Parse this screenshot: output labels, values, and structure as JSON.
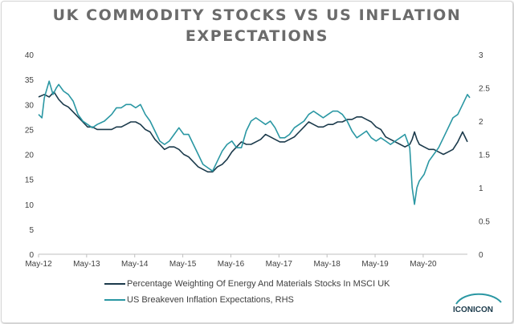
{
  "chart_data": {
    "type": "line",
    "title_lines": [
      "UK COMMODITY STOCKS VS US INFLATION",
      "EXPECTATIONS"
    ],
    "x_ticks": [
      "May-12",
      "May-13",
      "May-14",
      "May-15",
      "May-16",
      "May-17",
      "May-18",
      "May-19",
      "May-20"
    ],
    "y_left": {
      "min": 0,
      "max": 40,
      "ticks": [
        "0",
        "5",
        "10",
        "15",
        "20",
        "25",
        "30",
        "35",
        "40"
      ]
    },
    "y_right": {
      "min": 0,
      "max": 3,
      "ticks": [
        "0",
        "0.5",
        "1",
        "1.5",
        "2",
        "2.5",
        "3"
      ]
    },
    "grid": false,
    "legend_position": "bottom",
    "series": [
      {
        "name": "Percentage Weighting Of Energy And Materials Stocks In MSCI UK",
        "axis": "left",
        "color": "#1b3a4b",
        "x": [
          2012.38,
          2012.5,
          2012.6,
          2012.7,
          2012.8,
          2012.9,
          2013.0,
          2013.1,
          2013.2,
          2013.3,
          2013.4,
          2013.5,
          2013.6,
          2013.75,
          2013.9,
          2014.0,
          2014.1,
          2014.2,
          2014.3,
          2014.4,
          2014.5,
          2014.6,
          2014.7,
          2014.8,
          2014.9,
          2015.0,
          2015.1,
          2015.2,
          2015.3,
          2015.4,
          2015.5,
          2015.6,
          2015.7,
          2015.8,
          2015.9,
          2016.0,
          2016.1,
          2016.2,
          2016.3,
          2016.4,
          2016.5,
          2016.6,
          2016.7,
          2016.8,
          2016.9,
          2017.0,
          2017.1,
          2017.2,
          2017.3,
          2017.4,
          2017.5,
          2017.6,
          2017.7,
          2017.8,
          2017.9,
          2018.0,
          2018.1,
          2018.2,
          2018.3,
          2018.4,
          2018.5,
          2018.6,
          2018.7,
          2018.8,
          2018.9,
          2019.0,
          2019.1,
          2019.2,
          2019.3,
          2019.4,
          2019.5,
          2019.6,
          2019.7,
          2019.8,
          2019.9,
          2020.0,
          2020.1,
          2020.15,
          2020.2,
          2020.25,
          2020.3,
          2020.4,
          2020.5,
          2020.6,
          2020.7,
          2020.8,
          2020.9,
          2021.0,
          2021.1,
          2021.2,
          2021.3
        ],
        "values": [
          31.5,
          32,
          31.5,
          32.5,
          31,
          30,
          29.5,
          28.5,
          27.5,
          26.5,
          25.5,
          25.5,
          25,
          25,
          25,
          25.5,
          25.5,
          26,
          26.5,
          26.5,
          26,
          25,
          24.5,
          23,
          22,
          21,
          21.5,
          21.5,
          21,
          20,
          19.5,
          18.5,
          17.5,
          17,
          16.5,
          16.5,
          17.5,
          18,
          19,
          20.5,
          21.5,
          22.5,
          22,
          22,
          22.5,
          23,
          24,
          23.5,
          23,
          22.5,
          22.5,
          23,
          23.5,
          24.5,
          25.5,
          26.5,
          26,
          25.5,
          25.5,
          26,
          26,
          26.5,
          26.5,
          27,
          27,
          27.5,
          27.5,
          27,
          26.5,
          25.5,
          25,
          23.5,
          23,
          22.5,
          22,
          21.5,
          22,
          23,
          24.5,
          23,
          22,
          21.5,
          21,
          21,
          20.5,
          20,
          20.5,
          21,
          22.5,
          24.5,
          22.5
        ]
      },
      {
        "name": "US Breakeven Inflation Expectations, RHS",
        "axis": "right",
        "color": "#2a97a3",
        "x": [
          2012.38,
          2012.45,
          2012.5,
          2012.6,
          2012.68,
          2012.75,
          2012.8,
          2012.9,
          2013.0,
          2013.1,
          2013.2,
          2013.3,
          2013.4,
          2013.5,
          2013.6,
          2013.75,
          2013.9,
          2014.0,
          2014.1,
          2014.2,
          2014.3,
          2014.4,
          2014.5,
          2014.6,
          2014.7,
          2014.8,
          2014.9,
          2015.0,
          2015.1,
          2015.2,
          2015.3,
          2015.4,
          2015.5,
          2015.6,
          2015.7,
          2015.8,
          2015.9,
          2016.0,
          2016.1,
          2016.2,
          2016.3,
          2016.4,
          2016.5,
          2016.6,
          2016.7,
          2016.8,
          2016.9,
          2017.0,
          2017.1,
          2017.2,
          2017.3,
          2017.4,
          2017.5,
          2017.6,
          2017.7,
          2017.8,
          2017.9,
          2018.0,
          2018.1,
          2018.2,
          2018.3,
          2018.4,
          2018.5,
          2018.6,
          2018.7,
          2018.8,
          2018.9,
          2019.0,
          2019.1,
          2019.2,
          2019.3,
          2019.4,
          2019.5,
          2019.6,
          2019.7,
          2019.8,
          2019.9,
          2020.0,
          2020.1,
          2020.15,
          2020.2,
          2020.25,
          2020.3,
          2020.4,
          2020.5,
          2020.6,
          2020.7,
          2020.8,
          2020.9,
          2021.0,
          2021.1,
          2021.2,
          2021.3,
          2021.35
        ],
        "values": [
          2.1,
          2.05,
          2.35,
          2.6,
          2.4,
          2.5,
          2.55,
          2.45,
          2.4,
          2.3,
          2.1,
          2.0,
          1.95,
          1.9,
          1.95,
          2.0,
          2.1,
          2.2,
          2.2,
          2.25,
          2.25,
          2.2,
          2.25,
          2.1,
          2.0,
          1.85,
          1.7,
          1.65,
          1.7,
          1.8,
          1.9,
          1.8,
          1.8,
          1.65,
          1.5,
          1.35,
          1.3,
          1.25,
          1.4,
          1.55,
          1.65,
          1.7,
          1.6,
          1.6,
          1.85,
          2.0,
          2.05,
          2.0,
          1.95,
          2.0,
          1.9,
          1.75,
          1.75,
          1.8,
          1.9,
          1.95,
          2.0,
          2.1,
          2.15,
          2.1,
          2.05,
          2.1,
          2.15,
          2.15,
          2.1,
          2.0,
          1.85,
          1.75,
          1.8,
          1.85,
          1.75,
          1.7,
          1.75,
          1.7,
          1.65,
          1.7,
          1.75,
          1.8,
          1.6,
          1.0,
          0.75,
          1.0,
          1.1,
          1.2,
          1.4,
          1.5,
          1.6,
          1.75,
          1.9,
          2.05,
          2.1,
          2.25,
          2.4,
          2.35
        ]
      }
    ]
  },
  "logo": {
    "text": "ICONICON"
  }
}
